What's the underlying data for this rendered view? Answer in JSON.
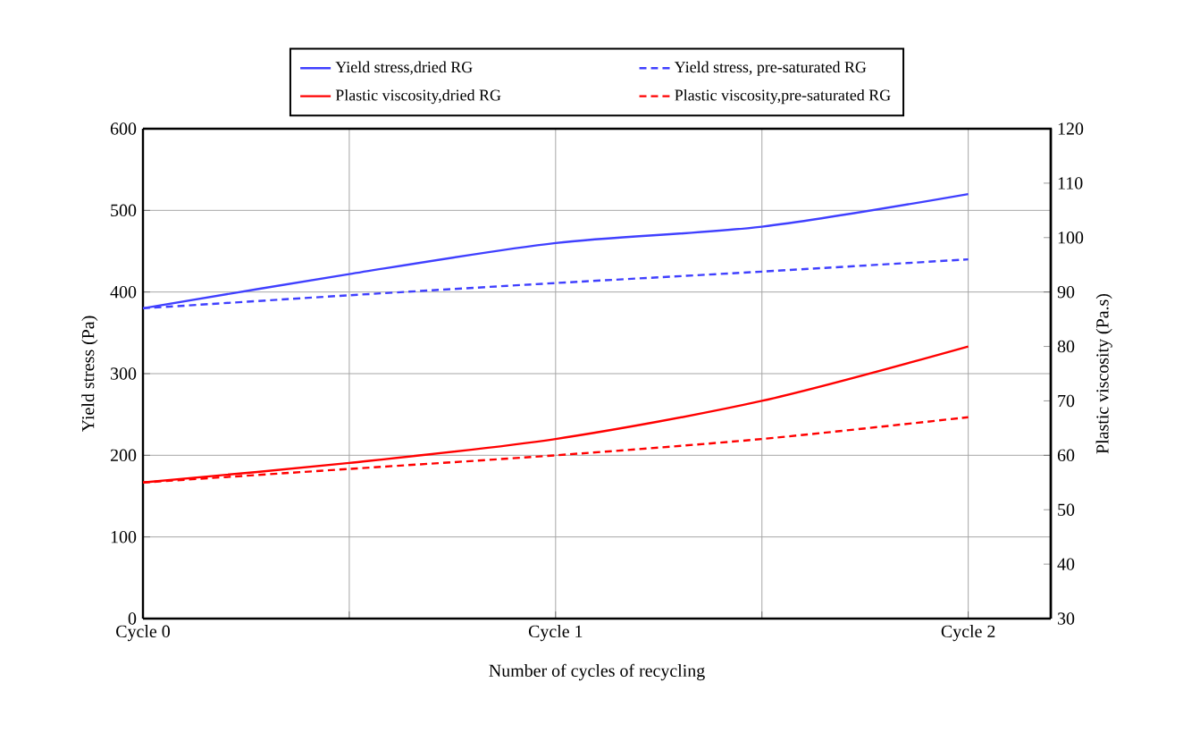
{
  "chart_data": {
    "type": "line",
    "xlabel": "Number of cycles of recycling",
    "ylabel": "Yield stress (Pa)",
    "y2label": "Plastic viscosity (Pa.s)",
    "categories": [
      "Cycle 0",
      null,
      "Cycle 1",
      null,
      "Cycle 2"
    ],
    "ylim": [
      0,
      600
    ],
    "yticks": [
      0,
      100,
      200,
      300,
      400,
      500,
      600
    ],
    "y2lim": [
      30,
      120
    ],
    "y2ticks": [
      30,
      40,
      50,
      60,
      70,
      80,
      90,
      100,
      110,
      120
    ],
    "grid": true,
    "legend": "top",
    "marker": "none",
    "series": [
      {
        "name": "Yield stress,dried RG",
        "color": "#4040ff",
        "line_style": "solid",
        "values": [
          380,
          422,
          460,
          480,
          520
        ]
      },
      {
        "name": "Yield stress, pre-saturated RG",
        "color": "#4040ff",
        "line_style": "dashed",
        "values": [
          380,
          396,
          411,
          425,
          440
        ]
      },
      {
        "name": "Plastic viscosity,dried RG",
        "color": "#ff0000",
        "line_style": "solid",
        "axis": "y2",
        "values": [
          55,
          58.6,
          63,
          70,
          80
        ]
      },
      {
        "name": "Plastic viscosity,pre-saturated RG",
        "color": "#ff0000",
        "line_style": "dashed",
        "axis": "y2",
        "values": [
          55,
          57.5,
          60,
          63,
          67
        ]
      }
    ]
  }
}
